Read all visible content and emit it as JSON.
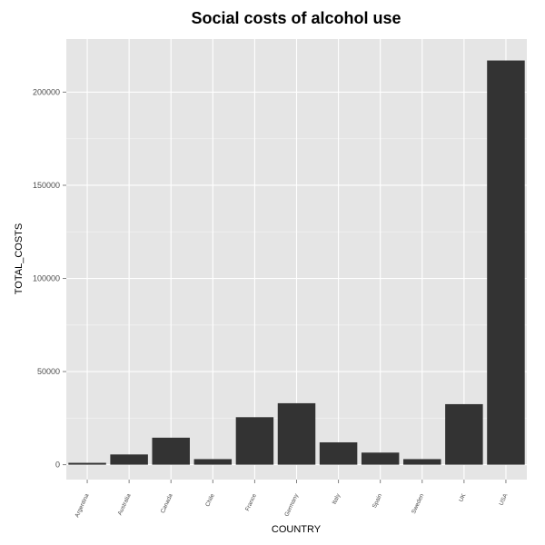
{
  "chart_data": {
    "type": "bar",
    "title": "Social costs of alcohol use",
    "xlabel": "COUNTRY",
    "ylabel": "TOTAL_COSTS",
    "categories": [
      "Argentina",
      "Australia",
      "Canada",
      "Chile",
      "France",
      "Germany",
      "Italy",
      "Spain",
      "Sweden",
      "UK",
      "USA"
    ],
    "values": [
      1000,
      5500,
      14500,
      3000,
      25500,
      33000,
      12000,
      6500,
      3000,
      32500,
      217000
    ],
    "ylim": [
      -8000,
      228500
    ],
    "yticks": [
      0,
      50000,
      100000,
      150000,
      200000
    ],
    "ytick_labels": [
      "0",
      "50000",
      "100000",
      "150000",
      "200000"
    ],
    "grid": true,
    "colors": {
      "panel": "#e5e5e5",
      "grid_major": "#ffffff",
      "grid_minor": "#f2f2f2",
      "bar": "#333333"
    }
  }
}
